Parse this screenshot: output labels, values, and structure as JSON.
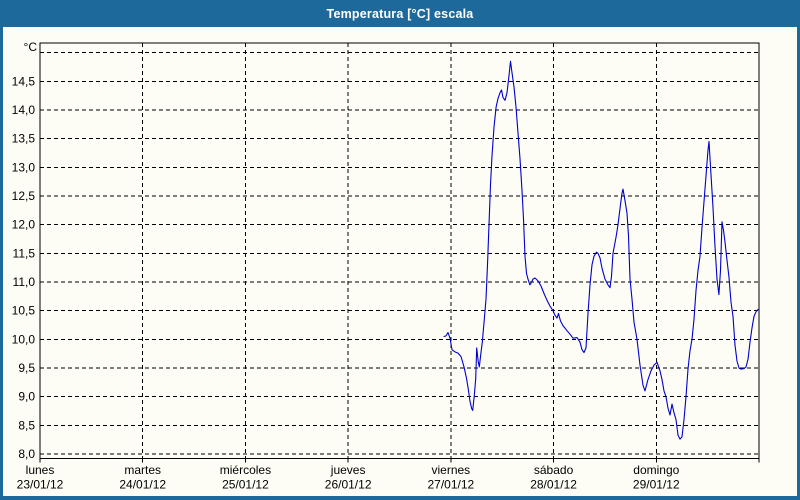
{
  "window": {
    "title": "Temperatura [°C] escala"
  },
  "colors": {
    "frame": "#1d699b",
    "title_text": "#ffffff",
    "plot_background": "#fdfdf6",
    "axis": "#000000",
    "grid": "#000000",
    "label_text": "#000000",
    "series_line": "#0000cd"
  },
  "chart_data": {
    "type": "line",
    "title": "Temperatura [°C] escala",
    "y_unit_label": "°C",
    "ylabel": "",
    "xlabel": "",
    "ylim": [
      8.0,
      15.0
    ],
    "y_tick_step": 0.5,
    "grid": "dashed",
    "legend": "none",
    "y_ticks": [
      {
        "v": 8.0,
        "label": "8,0"
      },
      {
        "v": 8.5,
        "label": "8,5"
      },
      {
        "v": 9.0,
        "label": "9,0"
      },
      {
        "v": 9.5,
        "label": "9,5"
      },
      {
        "v": 10.0,
        "label": "10,0"
      },
      {
        "v": 10.5,
        "label": "10,5"
      },
      {
        "v": 11.0,
        "label": "11,0"
      },
      {
        "v": 11.5,
        "label": "11,5"
      },
      {
        "v": 12.0,
        "label": "12,0"
      },
      {
        "v": 12.5,
        "label": "12,5"
      },
      {
        "v": 13.0,
        "label": "13,0"
      },
      {
        "v": 13.5,
        "label": "13,5"
      },
      {
        "v": 14.0,
        "label": "14,0"
      },
      {
        "v": 14.5,
        "label": "14,5"
      },
      {
        "v": 15.0,
        "label": ""
      }
    ],
    "x_days_total": 7,
    "x_ticks": [
      {
        "day": "lunes",
        "date": "23/01/12"
      },
      {
        "day": "martes",
        "date": "24/01/12"
      },
      {
        "day": "miércoles",
        "date": "25/01/12"
      },
      {
        "day": "jueves",
        "date": "26/01/12"
      },
      {
        "day": "viernes",
        "date": "27/01/12"
      },
      {
        "day": "sábado",
        "date": "28/01/12"
      },
      {
        "day": "domingo",
        "date": "29/01/12"
      }
    ],
    "series": [
      {
        "name": "Temperatura",
        "color": "#0000cd",
        "points": [
          [
            3.933,
            10.05
          ],
          [
            3.953,
            10.06
          ],
          [
            3.972,
            10.12
          ],
          [
            3.992,
            10.02
          ],
          [
            4.011,
            9.82
          ],
          [
            4.04,
            9.78
          ],
          [
            4.07,
            9.76
          ],
          [
            4.099,
            9.7
          ],
          [
            4.128,
            9.52
          ],
          [
            4.152,
            9.32
          ],
          [
            4.17,
            9.13
          ],
          [
            4.186,
            8.92
          ],
          [
            4.203,
            8.79
          ],
          [
            4.213,
            8.76
          ],
          [
            4.228,
            9.02
          ],
          [
            4.242,
            9.31
          ],
          [
            4.252,
            9.85
          ],
          [
            4.267,
            9.6
          ],
          [
            4.277,
            9.52
          ],
          [
            4.293,
            9.77
          ],
          [
            4.306,
            9.95
          ],
          [
            4.326,
            10.35
          ],
          [
            4.342,
            10.7
          ],
          [
            4.357,
            11.3
          ],
          [
            4.371,
            12.0
          ],
          [
            4.386,
            12.7
          ],
          [
            4.401,
            13.2
          ],
          [
            4.42,
            13.7
          ],
          [
            4.44,
            14.05
          ],
          [
            4.459,
            14.2
          ],
          [
            4.478,
            14.3
          ],
          [
            4.493,
            14.35
          ],
          [
            4.508,
            14.22
          ],
          [
            4.527,
            14.17
          ],
          [
            4.547,
            14.3
          ],
          [
            4.566,
            14.6
          ],
          [
            4.581,
            14.85
          ],
          [
            4.595,
            14.65
          ],
          [
            4.615,
            14.4
          ],
          [
            4.634,
            14.05
          ],
          [
            4.654,
            13.6
          ],
          [
            4.673,
            13.15
          ],
          [
            4.693,
            12.6
          ],
          [
            4.707,
            12.1
          ],
          [
            4.722,
            11.45
          ],
          [
            4.736,
            11.15
          ],
          [
            4.751,
            11.05
          ],
          [
            4.77,
            10.95
          ],
          [
            4.78,
            10.98
          ],
          [
            4.8,
            11.05
          ],
          [
            4.819,
            11.07
          ],
          [
            4.848,
            11.02
          ],
          [
            4.878,
            10.93
          ],
          [
            4.907,
            10.8
          ],
          [
            4.936,
            10.68
          ],
          [
            4.965,
            10.58
          ],
          [
            4.994,
            10.5
          ],
          [
            5.014,
            10.42
          ],
          [
            5.033,
            10.37
          ],
          [
            5.048,
            10.45
          ],
          [
            5.067,
            10.32
          ],
          [
            5.092,
            10.24
          ],
          [
            5.131,
            10.15
          ],
          [
            5.16,
            10.09
          ],
          [
            5.189,
            10.02
          ],
          [
            5.228,
            10.03
          ],
          [
            5.257,
            9.95
          ],
          [
            5.277,
            9.82
          ],
          [
            5.296,
            9.77
          ],
          [
            5.316,
            9.85
          ],
          [
            5.335,
            10.45
          ],
          [
            5.355,
            10.95
          ],
          [
            5.374,
            11.3
          ],
          [
            5.394,
            11.45
          ],
          [
            5.418,
            11.52
          ],
          [
            5.433,
            11.5
          ],
          [
            5.452,
            11.42
          ],
          [
            5.471,
            11.25
          ],
          [
            5.501,
            11.05
          ],
          [
            5.53,
            10.95
          ],
          [
            5.549,
            10.9
          ],
          [
            5.564,
            11.1
          ],
          [
            5.579,
            11.5
          ],
          [
            5.608,
            11.78
          ],
          [
            5.627,
            12.0
          ],
          [
            5.647,
            12.28
          ],
          [
            5.666,
            12.55
          ],
          [
            5.676,
            12.62
          ],
          [
            5.695,
            12.42
          ],
          [
            5.715,
            12.2
          ],
          [
            5.729,
            11.8
          ],
          [
            5.744,
            11.05
          ],
          [
            5.764,
            10.7
          ],
          [
            5.783,
            10.3
          ],
          [
            5.812,
            10.0
          ],
          [
            5.841,
            9.55
          ],
          [
            5.871,
            9.2
          ],
          [
            5.89,
            9.1
          ],
          [
            5.919,
            9.3
          ],
          [
            5.949,
            9.45
          ],
          [
            5.978,
            9.55
          ],
          [
            6.007,
            9.6
          ],
          [
            6.036,
            9.45
          ],
          [
            6.056,
            9.3
          ],
          [
            6.075,
            9.1
          ],
          [
            6.095,
            9.0
          ],
          [
            6.114,
            8.8
          ],
          [
            6.134,
            8.68
          ],
          [
            6.153,
            8.87
          ],
          [
            6.172,
            8.72
          ],
          [
            6.192,
            8.6
          ],
          [
            6.211,
            8.33
          ],
          [
            6.231,
            8.26
          ],
          [
            6.25,
            8.3
          ],
          [
            6.27,
            8.6
          ],
          [
            6.289,
            9.0
          ],
          [
            6.309,
            9.48
          ],
          [
            6.328,
            9.8
          ],
          [
            6.348,
            10.0
          ],
          [
            6.367,
            10.35
          ],
          [
            6.387,
            10.85
          ],
          [
            6.406,
            11.2
          ],
          [
            6.426,
            11.45
          ],
          [
            6.445,
            11.95
          ],
          [
            6.465,
            12.4
          ],
          [
            6.484,
            12.85
          ],
          [
            6.503,
            13.3
          ],
          [
            6.513,
            13.45
          ],
          [
            6.532,
            12.9
          ],
          [
            6.552,
            12.3
          ],
          [
            6.571,
            11.65
          ],
          [
            6.591,
            11.05
          ],
          [
            6.61,
            10.78
          ],
          [
            6.625,
            11.2
          ],
          [
            6.64,
            12.05
          ],
          [
            6.654,
            11.9
          ],
          [
            6.669,
            11.7
          ],
          [
            6.688,
            11.38
          ],
          [
            6.708,
            11.08
          ],
          [
            6.727,
            10.65
          ],
          [
            6.747,
            10.4
          ],
          [
            6.766,
            9.9
          ],
          [
            6.786,
            9.62
          ],
          [
            6.805,
            9.5
          ],
          [
            6.825,
            9.48
          ],
          [
            6.854,
            9.49
          ],
          [
            6.873,
            9.52
          ],
          [
            6.893,
            9.65
          ],
          [
            6.912,
            9.95
          ],
          [
            6.932,
            10.2
          ],
          [
            6.951,
            10.4
          ],
          [
            6.971,
            10.48
          ],
          [
            6.99,
            10.52
          ]
        ]
      }
    ]
  }
}
